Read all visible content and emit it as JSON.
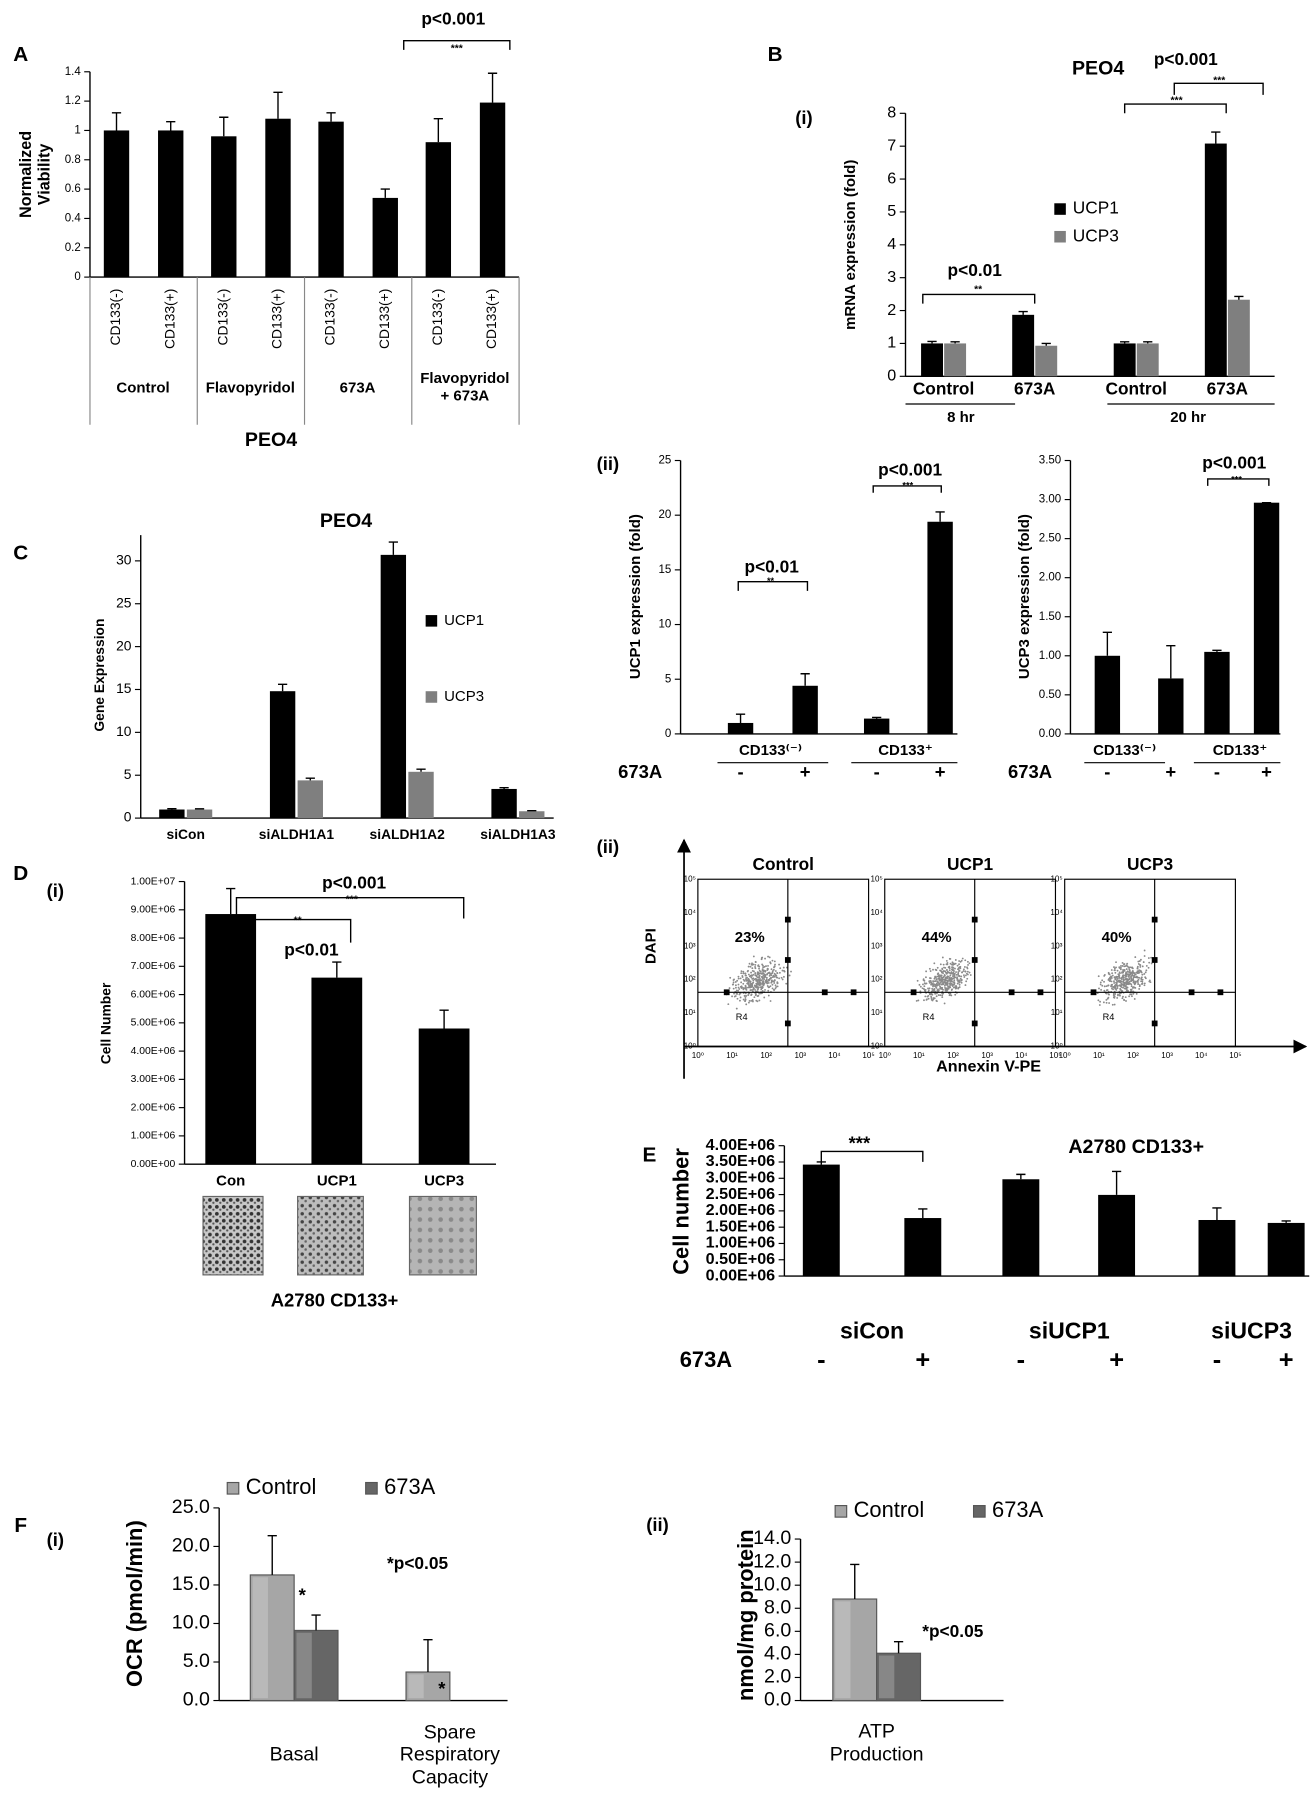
{
  "chart_data": [
    {
      "type": "bar",
      "panel": "A",
      "title": "PEO4",
      "ylabel": "Normalized Viability",
      "categories": [
        "CD133(-)",
        "CD133(+)",
        "CD133(-)",
        "CD133(+)",
        "CD133(-)",
        "CD133(+)",
        "CD133(-)",
        "CD133(+)"
      ],
      "groups": [
        "Control",
        "Flavopyridol",
        "673A",
        "Flavopyridol + 673A"
      ],
      "values": [
        1.0,
        1.0,
        0.96,
        1.08,
        1.06,
        0.54,
        0.92,
        1.19
      ],
      "errors": [
        0.12,
        0.06,
        0.13,
        0.18,
        0.06,
        0.06,
        0.16,
        0.2
      ],
      "color": "#000000",
      "ylim": [
        0,
        1.4
      ],
      "yticks": [
        0,
        0.2,
        0.4,
        0.6,
        0.8,
        1,
        1.2,
        1.4
      ],
      "annotations": [
        "p<0.001",
        "***"
      ]
    },
    {
      "type": "bar",
      "panel": "B",
      "subpanel": "(i)",
      "title": "PEO4",
      "ylabel": "mRNA expression (fold)",
      "categories": [
        "Control",
        "673A",
        "Control",
        "673A"
      ],
      "groups": [
        "8 hr",
        "20 hr"
      ],
      "series": [
        {
          "name": "UCP1",
          "color": "#000000",
          "values": [
            1,
            1.87,
            1,
            7.08
          ],
          "errors": [
            0.06,
            0.1,
            0.05,
            0.35
          ]
        },
        {
          "name": "UCP3",
          "color": "#7f7f7f",
          "values": [
            1,
            0.93,
            1,
            2.33
          ],
          "errors": [
            0.05,
            0.07,
            0.05,
            0.1
          ]
        }
      ],
      "ylim": [
        0,
        8
      ],
      "yticks": [
        0,
        1,
        2,
        3,
        4,
        5,
        6,
        7,
        8
      ],
      "annotations": [
        "p<0.01",
        "**",
        "p<0.001",
        "***",
        "***"
      ]
    },
    {
      "type": "bar",
      "subpanel": "(ii)",
      "ylabel": "UCP1 expression (fold)",
      "categories": [
        "-",
        "+",
        "-",
        "+"
      ],
      "groups": [
        "CD133⁽⁻⁾",
        "CD133⁺"
      ],
      "row_label": "673A",
      "values": [
        1.0,
        4.4,
        1.4,
        19.4
      ],
      "errors": [
        0.8,
        1.1,
        0.1,
        0.9
      ],
      "color": "#000000",
      "ylim": [
        0,
        25
      ],
      "yticks": [
        0,
        5,
        10,
        15,
        20,
        25
      ],
      "annotations": [
        "p<0.01",
        "**",
        "p<0.001",
        "***"
      ]
    },
    {
      "type": "bar",
      "ylabel": "UCP3 expression (fold)",
      "categories": [
        "-",
        "+",
        "-",
        "+"
      ],
      "groups": [
        "CD133⁽⁻⁾",
        "CD133⁺"
      ],
      "row_label": "673A",
      "values": [
        1.0,
        0.71,
        1.05,
        2.96
      ],
      "errors": [
        0.3,
        0.42,
        0.02,
        0
      ],
      "color": "#000000",
      "ylim": [
        0,
        3.5
      ],
      "yticks": [
        {
          "value": 0,
          "label": "0.00"
        },
        {
          "value": 0.5,
          "label": "0.50"
        },
        {
          "value": 1,
          "label": "1.00"
        },
        {
          "value": 1.5,
          "label": "1.50"
        },
        {
          "value": 2,
          "label": "2.00"
        },
        {
          "value": 2.5,
          "label": "2.50"
        },
        {
          "value": 3,
          "label": "3.00"
        },
        {
          "value": 3.5,
          "label": "3.50"
        }
      ],
      "annotations": [
        "p<0.001",
        "***"
      ]
    },
    {
      "type": "bar",
      "panel": "C",
      "title": "PEO4",
      "ylabel": "Gene Expression",
      "categories": [
        "siCon",
        "siALDH1A1",
        "siALDH1A2",
        "siALDH1A3"
      ],
      "series": [
        {
          "name": "UCP1",
          "color": "#000000",
          "values": [
            1,
            14.8,
            30.7,
            3.4
          ],
          "errors": [
            0.1,
            0.8,
            1.5,
            0.15
          ]
        },
        {
          "name": "UCP3",
          "color": "#7f7f7f",
          "values": [
            1,
            4.4,
            5.4,
            0.8
          ],
          "errors": [
            0.08,
            0.25,
            0.3,
            0.07
          ]
        }
      ],
      "ylim": [
        0,
        33
      ],
      "yticks": [
        0,
        5,
        10,
        15,
        20,
        25,
        30
      ]
    },
    {
      "type": "bar",
      "panel": "D",
      "subpanel": "(i)",
      "ylabel": "Cell Number",
      "categories": [
        "Con",
        "UCP1",
        "UCP3"
      ],
      "values": [
        8850000,
        6600000,
        4800000
      ],
      "errors": [
        900000,
        550000,
        650000
      ],
      "color": "#000000",
      "ylim": [
        0,
        10000000
      ],
      "yticks": [
        {
          "value": 0,
          "label": "0.00E+00"
        },
        {
          "value": 1000000,
          "label": "1.00E+06"
        },
        {
          "value": 2000000,
          "label": "2.00E+06"
        },
        {
          "value": 3000000,
          "label": "3.00E+06"
        },
        {
          "value": 4000000,
          "label": "4.00E+06"
        },
        {
          "value": 5000000,
          "label": "5.00E+06"
        },
        {
          "value": 6000000,
          "label": "6.00E+06"
        },
        {
          "value": 7000000,
          "label": "7.00E+06"
        },
        {
          "value": 8000000,
          "label": "8.00E+06"
        },
        {
          "value": 9000000,
          "label": "9.00E+06"
        },
        {
          "value": 10000000,
          "label": "1.00E+07"
        }
      ],
      "annotations": [
        "p<0.001",
        "***",
        "**",
        "p<0.01"
      ],
      "caption": "A2780 CD133+"
    },
    {
      "type": "bar",
      "panel": "E",
      "title": "A2780 CD133+",
      "ylabel": "Cell number",
      "categories": [
        "-",
        "+",
        "-",
        "+",
        "-",
        "+"
      ],
      "groups": [
        "siCon",
        "siUCP1",
        "siUCP3"
      ],
      "row_label": "673A",
      "values": [
        3420000,
        1780000,
        2970000,
        2490000,
        1720000,
        1630000
      ],
      "errors": [
        80000,
        280000,
        150000,
        720000,
        370000,
        60000
      ],
      "color": "#000000",
      "ylim": [
        0,
        4000000
      ],
      "yticks": [
        {
          "value": 0,
          "label": "0.00E+06"
        },
        {
          "value": 500000,
          "label": "0.50E+06"
        },
        {
          "value": 1000000,
          "label": "1.00E+06"
        },
        {
          "value": 1500000,
          "label": "1.50E+06"
        },
        {
          "value": 2000000,
          "label": "2.00E+06"
        },
        {
          "value": 2500000,
          "label": "2.50E+06"
        },
        {
          "value": 3000000,
          "label": "3.00E+06"
        },
        {
          "value": 3500000,
          "label": "3.50E+06"
        },
        {
          "value": 4000000,
          "label": "4.00E+06"
        }
      ],
      "annotations": [
        "***"
      ]
    },
    {
      "type": "bar",
      "panel": "F",
      "subpanel": "(i)",
      "ylabel": "OCR (pmol/min)",
      "categories": [
        "Basal",
        "Spare Respiratory Capacity"
      ],
      "series": [
        {
          "name": "Control",
          "color": "#a6a6a6",
          "values": [
            16.3,
            3.7
          ],
          "errors": [
            5.1,
            4.2
          ]
        },
        {
          "name": "673A",
          "color": "#666666",
          "values": [
            9.1,
            0
          ],
          "errors": [
            2.0,
            null
          ]
        }
      ],
      "ylim": [
        0,
        25
      ],
      "yticks": [
        {
          "value": 0,
          "label": "0.0"
        },
        {
          "value": 5,
          "label": "5.0"
        },
        {
          "value": 10,
          "label": "10.0"
        },
        {
          "value": 15,
          "label": "15.0"
        },
        {
          "value": 20,
          "label": "20.0"
        },
        {
          "value": 25,
          "label": "25.0"
        }
      ],
      "annotations": [
        "*",
        "*p<0.05",
        "*"
      ]
    },
    {
      "type": "bar",
      "subpanel": "(ii)",
      "ylabel": "nmol/mg protein",
      "categories": [
        "ATP Production"
      ],
      "series": [
        {
          "name": "Control",
          "color": "#a6a6a6",
          "values": [
            8.8
          ],
          "errors": [
            3.0
          ]
        },
        {
          "name": "673A",
          "color": "#666666",
          "values": [
            4.1
          ],
          "errors": [
            1.0
          ]
        }
      ],
      "ylim": [
        0,
        14
      ],
      "yticks": [
        {
          "value": 0,
          "label": "0.0"
        },
        {
          "value": 2,
          "label": "2.0"
        },
        {
          "value": 4,
          "label": "4.0"
        },
        {
          "value": 6,
          "label": "6.0"
        },
        {
          "value": 8,
          "label": "8.0"
        },
        {
          "value": 10,
          "label": "10.0"
        },
        {
          "value": 12,
          "label": "12.0"
        },
        {
          "value": 14,
          "label": "14.0"
        }
      ],
      "annotations": [
        "*p<0.05"
      ]
    }
  ],
  "flow_cytometry": {
    "subpanel": "(ii)",
    "ylabel": "DAPI",
    "xlabel": "Annexin V-PE",
    "decade_labels": [
      "10⁰",
      "10¹",
      "10²",
      "10³",
      "10⁴",
      "10⁵"
    ],
    "panels": [
      {
        "title": "Control",
        "percent": "23%",
        "gate": "R4"
      },
      {
        "title": "UCP1",
        "percent": "44%",
        "gate": "R4"
      },
      {
        "title": "UCP3",
        "percent": "40%",
        "gate": "R4"
      }
    ]
  }
}
